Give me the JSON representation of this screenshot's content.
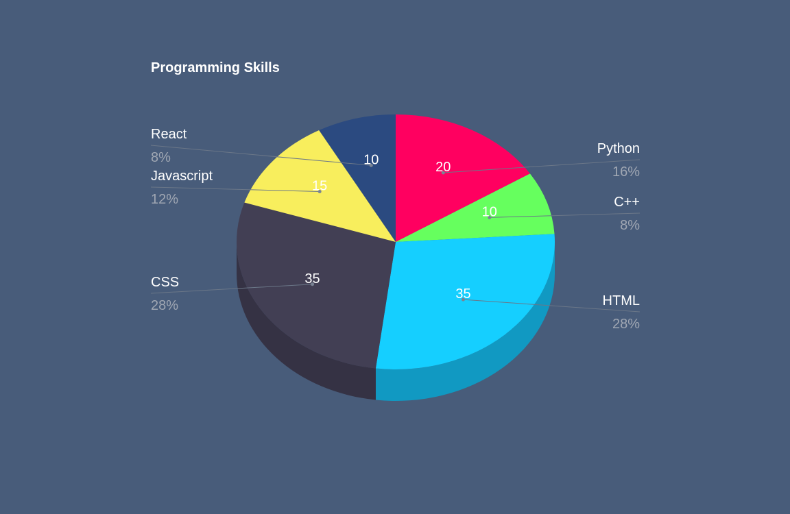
{
  "chart_data": {
    "type": "pie",
    "title": "Programming Skills",
    "slices": [
      {
        "label": "Python",
        "value": 20,
        "percent": "16%",
        "color": "#ff0060",
        "side_color": "#cc004c"
      },
      {
        "label": "C++",
        "value": 10,
        "percent": "8%",
        "color": "#66ff5e",
        "side_color": "#4fcc48"
      },
      {
        "label": "HTML",
        "value": 35,
        "percent": "28%",
        "color": "#15cfff",
        "side_color": "#1199c2"
      },
      {
        "label": "CSS",
        "value": 35,
        "percent": "28%",
        "color": "#423f54",
        "side_color": "#353244"
      },
      {
        "label": "Javascript",
        "value": 15,
        "percent": "12%",
        "color": "#f8ee5d",
        "side_color": "#c7be48"
      },
      {
        "label": "React",
        "value": 10,
        "percent": "8%",
        "color": "#2b4a80",
        "side_color": "#1f3862"
      }
    ]
  }
}
